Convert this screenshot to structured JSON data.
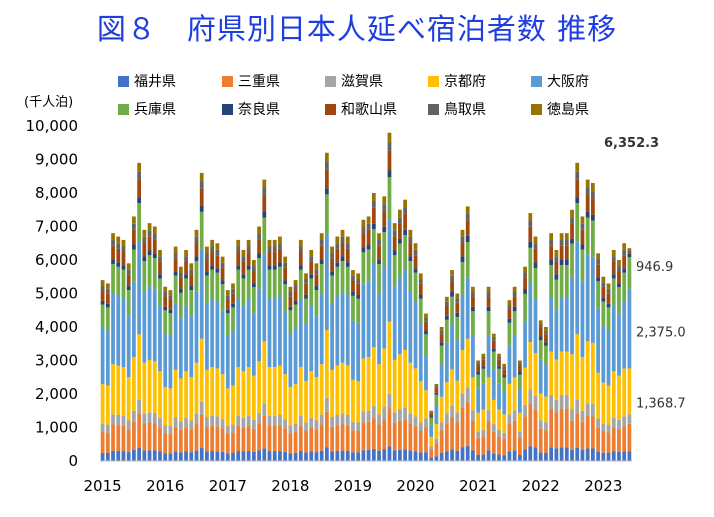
{
  "page": {
    "title": "図８　府県別日本人延べ宿泊者数 推移"
  },
  "chart_data": {
    "type": "bar",
    "stacked": true,
    "unit_label": "(千人泊)",
    "ylim": [
      0,
      10000
    ],
    "yticks": [
      "0",
      "1,000",
      "2,000",
      "3,000",
      "4,000",
      "5,000",
      "6,000",
      "7,000",
      "8,000",
      "9,000",
      "10,000"
    ],
    "x_year_labels": [
      "2015",
      "2016",
      "2017",
      "2018",
      "2019",
      "2020",
      "2021",
      "2022",
      "2023"
    ],
    "legend_position": "top",
    "series_colors": {
      "福井県": "#4472c4",
      "三重県": "#ed7d31",
      "滋賀県": "#a5a5a5",
      "京都府": "#ffc000",
      "大阪府": "#5b9bd5",
      "兵庫県": "#70ad47",
      "奈良県": "#264478",
      "和歌山県": "#9e480e",
      "鳥取県": "#636363",
      "徳島県": "#997300"
    },
    "categories": [
      "2015-01",
      "2015-02",
      "2015-03",
      "2015-04",
      "2015-05",
      "2015-06",
      "2015-07",
      "2015-08",
      "2015-09",
      "2015-10",
      "2015-11",
      "2015-12",
      "2016-01",
      "2016-02",
      "2016-03",
      "2016-04",
      "2016-05",
      "2016-06",
      "2016-07",
      "2016-08",
      "2016-09",
      "2016-10",
      "2016-11",
      "2016-12",
      "2017-01",
      "2017-02",
      "2017-03",
      "2017-04",
      "2017-05",
      "2017-06",
      "2017-07",
      "2017-08",
      "2017-09",
      "2017-10",
      "2017-11",
      "2017-12",
      "2018-01",
      "2018-02",
      "2018-03",
      "2018-04",
      "2018-05",
      "2018-06",
      "2018-07",
      "2018-08",
      "2018-09",
      "2018-10",
      "2018-11",
      "2018-12",
      "2019-01",
      "2019-02",
      "2019-03",
      "2019-04",
      "2019-05",
      "2019-06",
      "2019-07",
      "2019-08",
      "2019-09",
      "2019-10",
      "2019-11",
      "2019-12",
      "2020-01",
      "2020-02",
      "2020-03",
      "2020-04",
      "2020-05",
      "2020-06",
      "2020-07",
      "2020-08",
      "2020-09",
      "2020-10",
      "2020-11",
      "2020-12",
      "2021-01",
      "2021-02",
      "2021-03",
      "2021-04",
      "2021-05",
      "2021-06",
      "2021-07",
      "2021-08",
      "2021-09",
      "2021-10",
      "2021-11",
      "2021-12",
      "2022-01",
      "2022-02",
      "2022-03",
      "2022-04",
      "2022-05",
      "2022-06",
      "2022-07",
      "2022-08",
      "2022-09",
      "2022-10",
      "2022-11",
      "2022-12",
      "2023-01",
      "2023-02",
      "2023-03",
      "2023-04",
      "2023-05",
      "2023-06"
    ],
    "totals": [
      5400,
      5300,
      6800,
      6700,
      6600,
      5900,
      7300,
      8900,
      6900,
      7100,
      7000,
      6300,
      5200,
      5100,
      6400,
      5800,
      6300,
      5900,
      6900,
      8600,
      6400,
      6600,
      6500,
      6100,
      5100,
      5300,
      6600,
      6300,
      6600,
      6000,
      7000,
      8400,
      6600,
      6600,
      6700,
      6100,
      5200,
      5400,
      6600,
      5600,
      6300,
      5900,
      6800,
      9200,
      6400,
      6700,
      6900,
      6700,
      5700,
      5600,
      7200,
      7300,
      8000,
      6800,
      7900,
      9800,
      7100,
      7500,
      7800,
      6900,
      6500,
      5600,
      4400,
      1500,
      2300,
      4000,
      4900,
      5700,
      5000,
      6900,
      7600,
      5200,
      3000,
      3200,
      5200,
      3800,
      3200,
      2900,
      4800,
      5200,
      3000,
      5800,
      7400,
      6700,
      4200,
      4000,
      6800,
      6300,
      6800,
      6800,
      7500,
      8900,
      7300,
      8400,
      8300,
      6200,
      5500,
      5300,
      6300,
      6000,
      6500,
      6352.3
    ],
    "latest": {
      "label": "2023-06",
      "total": "6,352.3",
      "osaka": "2,375.0",
      "hyogo": "946.9",
      "kyoto": "1,368.7"
    },
    "shares_normal": {
      "福井県": 0.045,
      "三重県": 0.115,
      "滋賀県": 0.045,
      "京都府": 0.22,
      "大阪府": 0.31,
      "兵庫県": 0.13,
      "奈良県": 0.02,
      "和歌山県": 0.06,
      "鳥取県": 0.025,
      "徳島県": 0.03
    },
    "shares_covid": {
      "福井県": 0.06,
      "三重県": 0.17,
      "滋賀県": 0.06,
      "京都府": 0.19,
      "大阪府": 0.24,
      "兵庫県": 0.14,
      "奈良県": 0.025,
      "和歌山県": 0.06,
      "鳥取県": 0.025,
      "徳島県": 0.03
    },
    "shares_latest": {
      "福井県": 0.045,
      "三重県": 0.13,
      "滋賀県": 0.045,
      "京都府": 0.215,
      "大阪府": 0.374,
      "兵庫県": 0.149,
      "奈良県": 0.015,
      "和歌山県": 0.015,
      "鳥取県": 0.006,
      "徳島県": 0.006
    }
  }
}
